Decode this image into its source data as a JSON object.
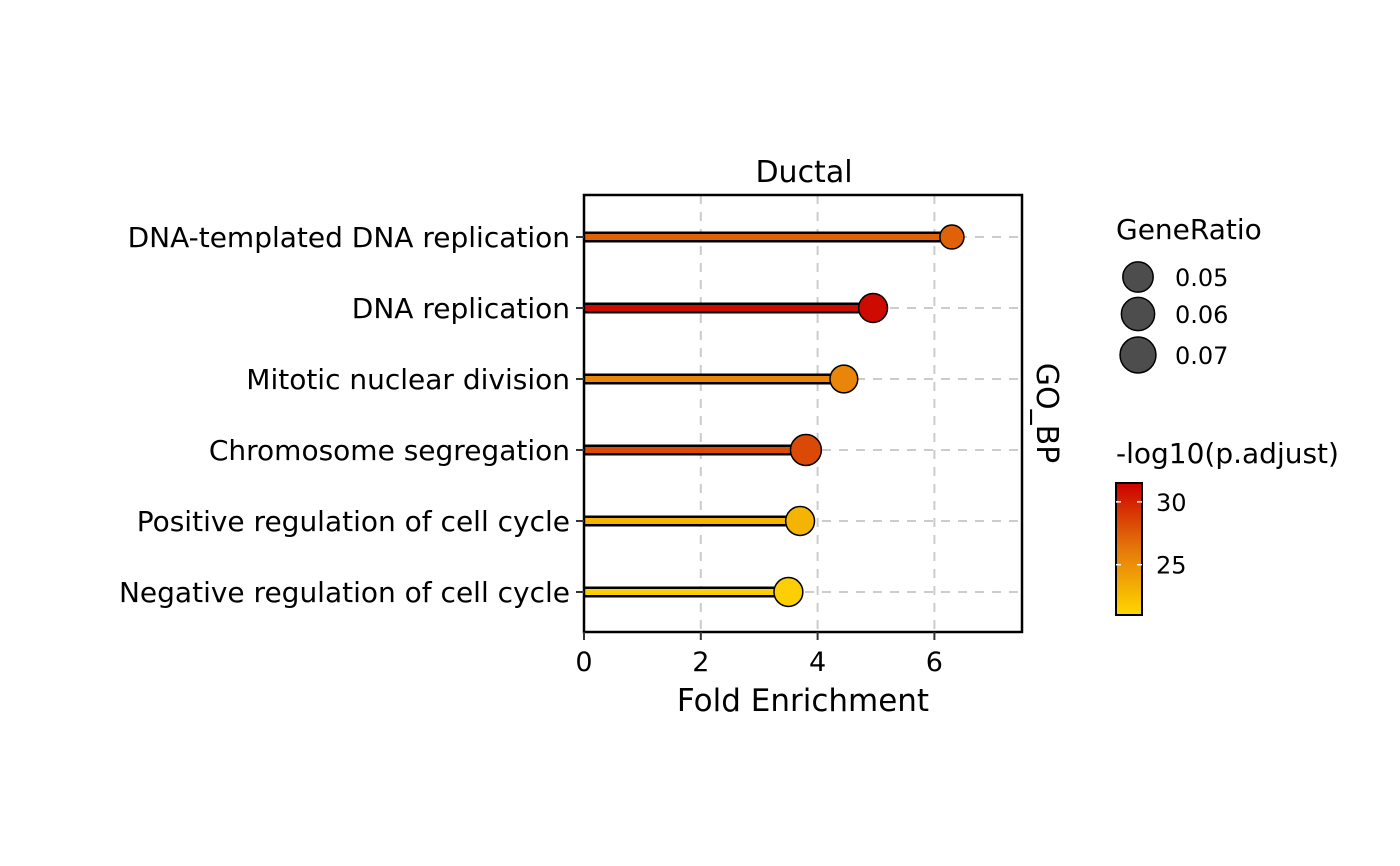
{
  "chart_data": {
    "type": "lollipop",
    "facet_title": "Ductal",
    "facet_side_label": "GO_BP",
    "xlabel": "Fold Enrichment",
    "ylabel": "",
    "xlim": [
      0,
      7.5
    ],
    "x_ticks": [
      0,
      2,
      4,
      6
    ],
    "grid": "dashed vertical and horizontal",
    "categories": [
      "DNA-templated DNA replication",
      "DNA replication",
      "Mitotic nuclear division",
      "Chromosome segregation",
      "Positive regulation of cell cycle",
      "Negative regulation of cell cycle"
    ],
    "fold_enrichment": [
      6.3,
      4.95,
      4.45,
      3.8,
      3.7,
      3.5
    ],
    "gene_ratio": [
      0.043,
      0.062,
      0.057,
      0.071,
      0.062,
      0.062
    ],
    "neg_log10_padj": [
      27.2,
      31.0,
      25.5,
      28.3,
      23.0,
      21.5
    ],
    "legend_gene_ratio": {
      "title": "GeneRatio",
      "values": [
        0.05,
        0.06,
        0.07
      ],
      "labels": [
        "0.05",
        "0.06",
        "0.07"
      ],
      "color": "#4d4d4d"
    },
    "legend_color": {
      "title": "-log10(p.adjust)",
      "range": [
        21,
        31.5
      ],
      "ticks": [
        30,
        25
      ],
      "tick_labels": [
        "30",
        "25"
      ],
      "color_low": "#ffd700",
      "color_mid": "#e5780a",
      "color_high": "#cc0000"
    },
    "legend_placement": "right"
  }
}
